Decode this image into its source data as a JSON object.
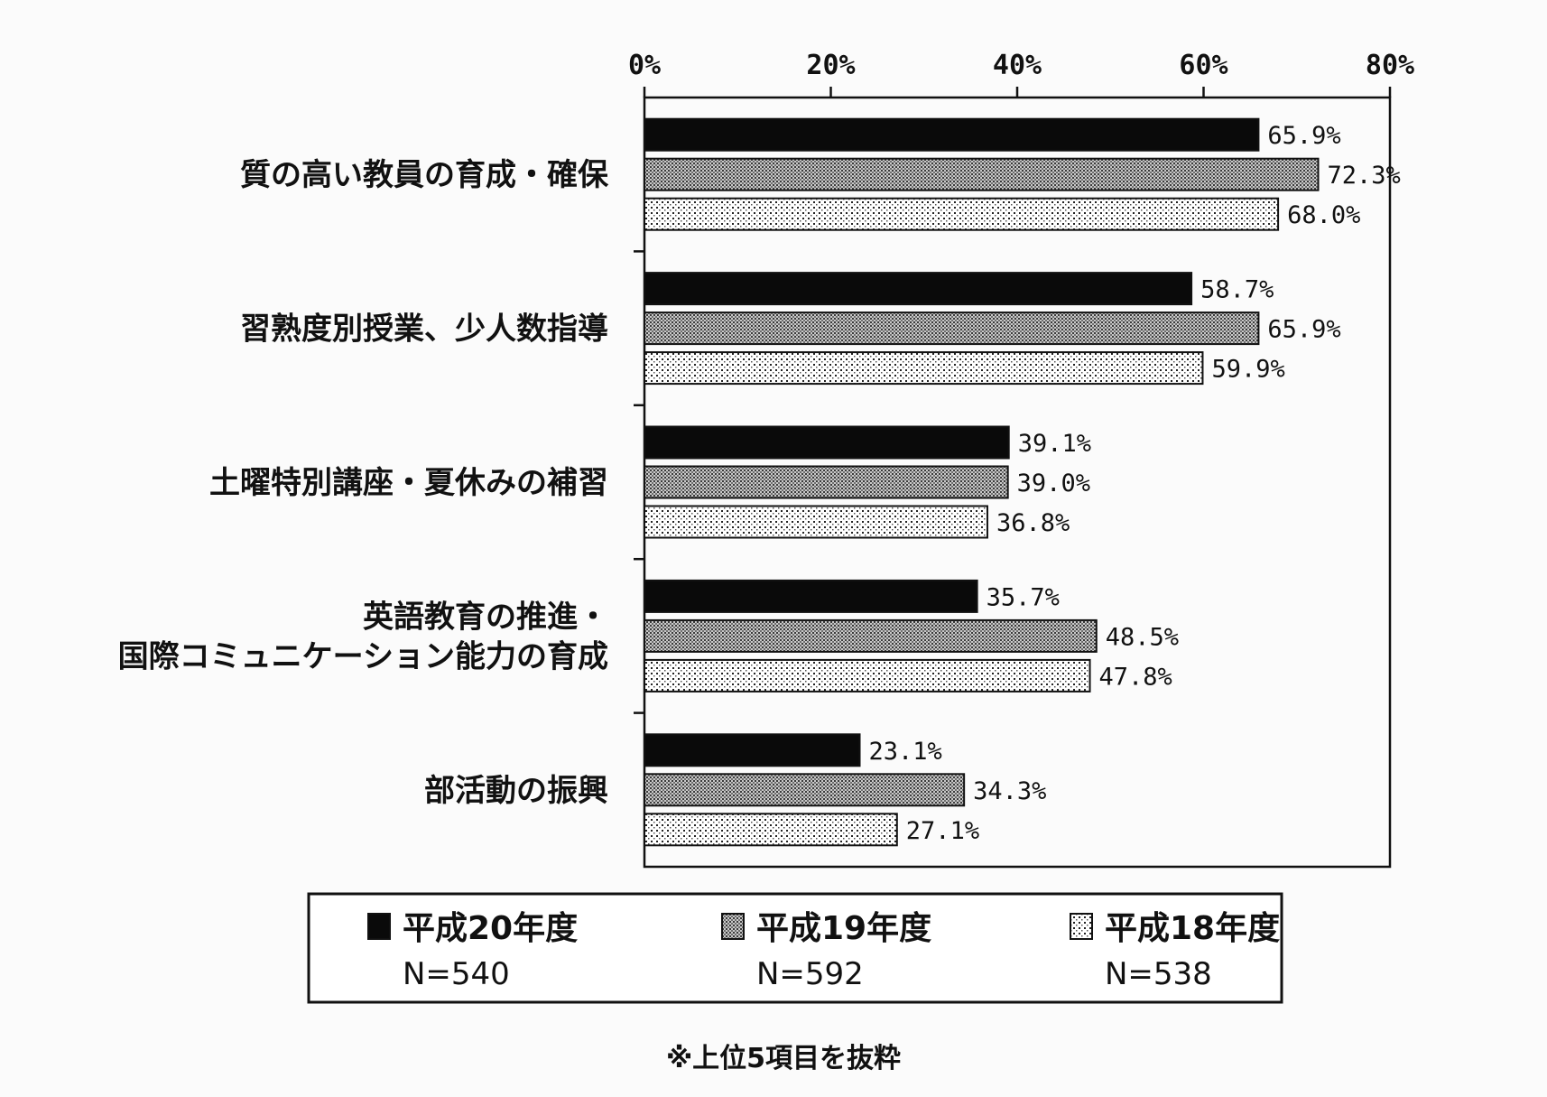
{
  "chart_data": {
    "type": "bar",
    "orientation": "horizontal",
    "categories": [
      [
        "質の高い教員の育成・確保"
      ],
      [
        "習熟度別授業、少人数指導"
      ],
      [
        "土曜特別講座・夏休みの補習"
      ],
      [
        "英語教育の推進・",
        "国際コミュニケーション能力の育成"
      ],
      [
        "部活動の振興"
      ]
    ],
    "series": [
      {
        "name": "平成20年度",
        "n": "N=540",
        "pattern": "solid",
        "color": "#0a0a0a",
        "values": [
          65.9,
          58.7,
          39.1,
          35.7,
          23.1
        ],
        "labels": [
          "65.9%",
          "58.7%",
          "39.1%",
          "35.7%",
          "23.1%"
        ]
      },
      {
        "name": "平成19年度",
        "n": "N=592",
        "pattern": "grid",
        "color": "#7a7a7a",
        "values": [
          72.3,
          65.9,
          39.0,
          48.5,
          34.3
        ],
        "labels": [
          "72.3%",
          "65.9%",
          "39.0%",
          "48.5%",
          "34.3%"
        ]
      },
      {
        "name": "平成18年度",
        "n": "N=538",
        "pattern": "dots",
        "color": "#e0e0e0",
        "values": [
          68.0,
          59.9,
          36.8,
          47.8,
          27.1
        ],
        "labels": [
          "68.0%",
          "59.9%",
          "36.8%",
          "47.8%",
          "27.1%"
        ]
      }
    ],
    "xlim": [
      0,
      80
    ],
    "xticks": [
      0,
      20,
      40,
      60,
      80
    ],
    "xtick_labels": [
      "0%",
      "20%",
      "40%",
      "60%",
      "80%"
    ],
    "xaxis_position": "top",
    "grid": false,
    "legend_placement": "bottom",
    "footnote": "※上位5項目を抜粋"
  }
}
